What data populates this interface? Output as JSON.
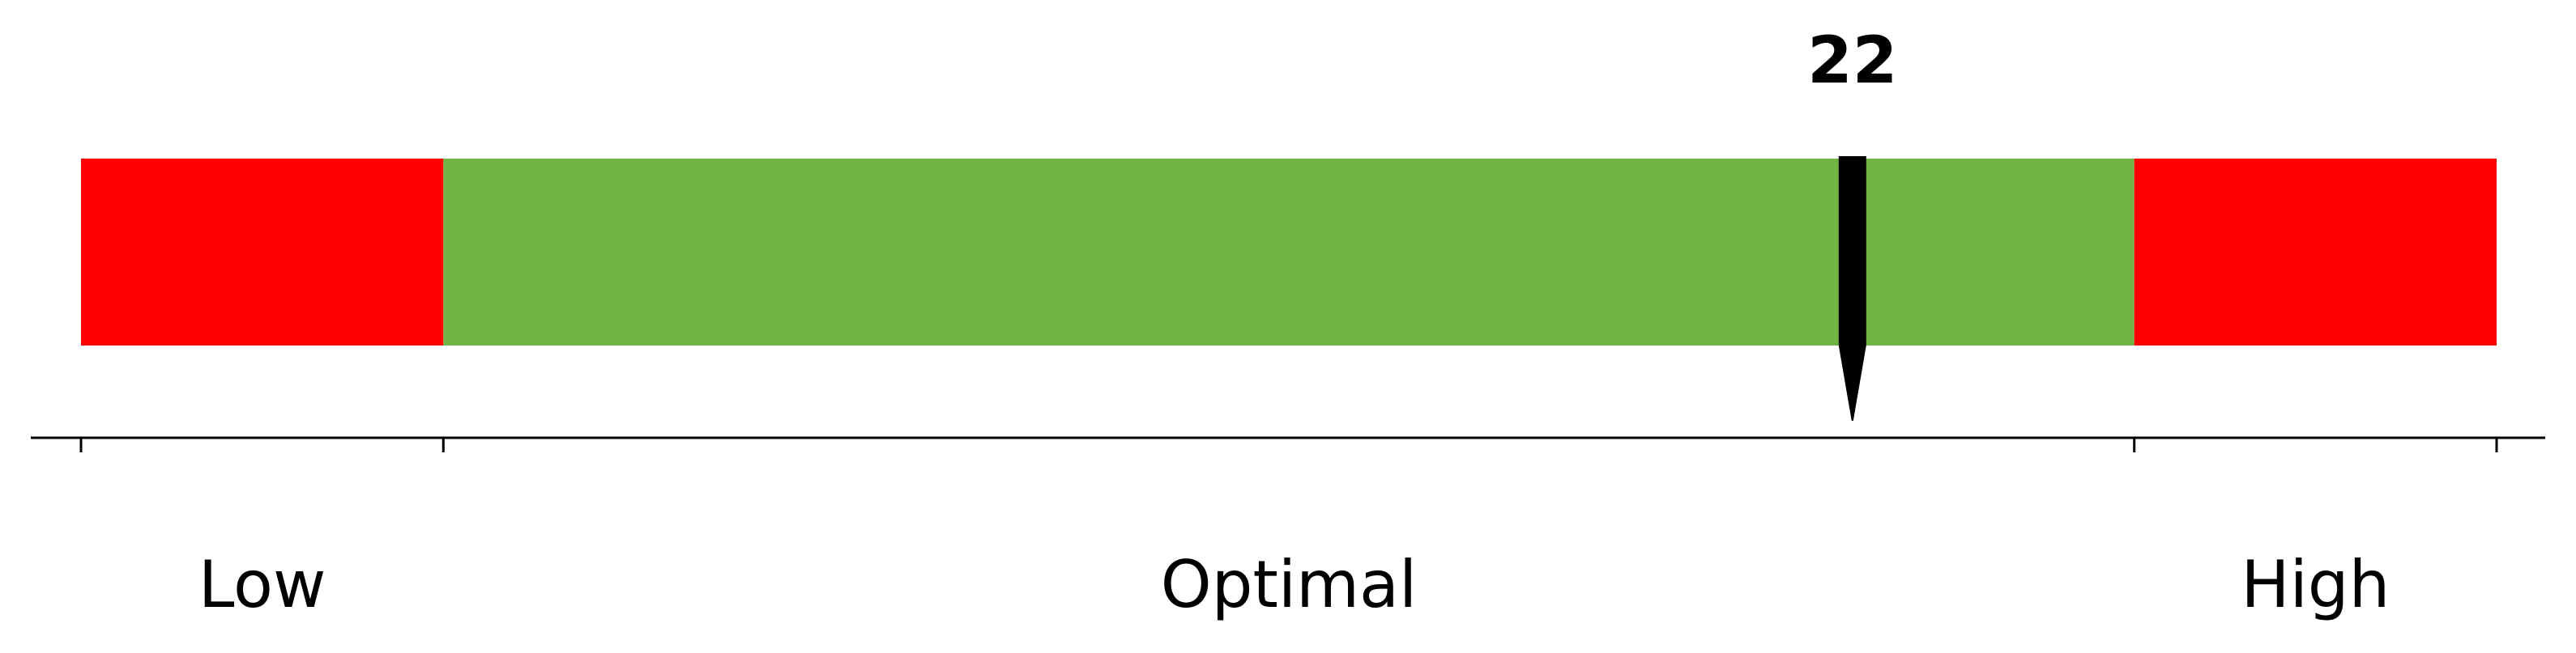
{
  "chart_data": {
    "type": "bullet-gauge",
    "value": 22,
    "value_label": "22",
    "range": [
      0,
      30
    ],
    "zones": [
      {
        "label": "Low",
        "from": 0,
        "to": 4.5,
        "color": "#ff0000"
      },
      {
        "label": "Optimal",
        "from": 4.5,
        "to": 25.5,
        "color": "#70b244"
      },
      {
        "label": "High",
        "from": 25.5,
        "to": 30,
        "color": "#ff0000"
      }
    ],
    "ticks": [
      0,
      4.5,
      25.5,
      30
    ],
    "marker_color": "#000000",
    "axis_color": "#000000"
  }
}
